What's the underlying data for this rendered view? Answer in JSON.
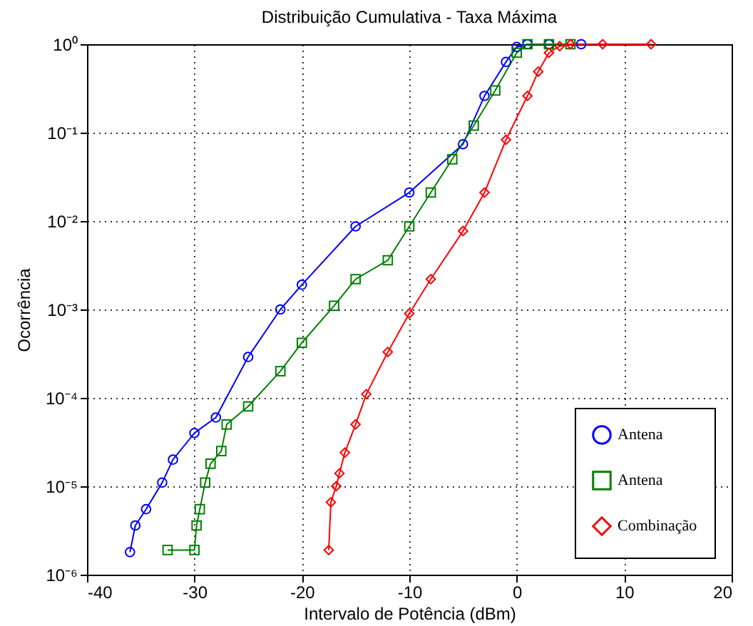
{
  "chart_data": {
    "type": "line",
    "title": "Distribuição Cumulativa - Taxa Máxima",
    "xlabel": "Intervalo de Potência (dBm)",
    "ylabel": "Ocorrência",
    "log": "y",
    "grid": true,
    "line_style": "solid",
    "legend": "bottom right",
    "xlim": [
      -40,
      20
    ],
    "xticks": [
      -40,
      -30,
      -20,
      -10,
      0,
      10,
      20
    ],
    "ylim": [
      1e-06,
      1
    ],
    "yticks": [
      {
        "value": 1e-06,
        "label": "10⁻⁶"
      },
      {
        "value": 1e-05,
        "label": "10⁻⁵"
      },
      {
        "value": 0.0001,
        "label": "10⁻⁴"
      },
      {
        "value": 0.001,
        "label": "10⁻³"
      },
      {
        "value": 0.01,
        "label": "10⁻²"
      },
      {
        "value": 0.1,
        "label": "10⁻¹"
      },
      {
        "value": 1,
        "label": "10⁰"
      }
    ],
    "series": [
      {
        "name": "Antena",
        "color": "#0000ff",
        "marker": "circle",
        "x": [
          -36,
          -35.5,
          -34.5,
          -33,
          -32,
          -30,
          -28,
          -25,
          -22,
          -20,
          -15,
          -10,
          -5,
          -3,
          -1,
          0,
          1,
          3,
          6
        ],
        "values": [
          1.8e-06,
          3.6e-06,
          5.5e-06,
          1.1e-05,
          2e-05,
          4e-05,
          6e-05,
          0.00029,
          0.001,
          0.0019,
          0.0087,
          0.021,
          0.074,
          0.26,
          0.63,
          0.93,
          1,
          1,
          1
        ]
      },
      {
        "name": "Antena",
        "color": "#008000",
        "marker": "square",
        "x": [
          -32.5,
          -30,
          -29.8,
          -29.5,
          -29,
          -28.5,
          -27.5,
          -27,
          -25,
          -22,
          -20,
          -17,
          -15,
          -12,
          -10,
          -8,
          -6,
          -4,
          -2,
          0,
          1,
          3,
          5
        ],
        "values": [
          1.9e-06,
          1.9e-06,
          3.6e-06,
          5.5e-06,
          1.1e-05,
          1.8e-05,
          2.5e-05,
          5e-05,
          8e-05,
          0.0002,
          0.00042,
          0.0011,
          0.0022,
          0.0036,
          0.0087,
          0.021,
          0.05,
          0.12,
          0.3,
          0.8,
          1,
          1,
          1
        ]
      },
      {
        "name": "Combinação",
        "color": "#ff0000",
        "marker": "diamond",
        "x": [
          -17.5,
          -17.3,
          -16.8,
          -16.5,
          -16,
          -15,
          -14,
          -12,
          -10,
          -8,
          -5,
          -3,
          -1,
          1,
          2,
          3,
          4,
          5,
          8,
          12.5
        ],
        "values": [
          1.9e-06,
          6.6e-06,
          1e-05,
          1.4e-05,
          2.4e-05,
          5e-05,
          0.00011,
          0.00033,
          0.0009,
          0.0022,
          0.0077,
          0.021,
          0.083,
          0.26,
          0.49,
          0.8,
          0.95,
          1,
          1,
          1
        ]
      }
    ]
  }
}
